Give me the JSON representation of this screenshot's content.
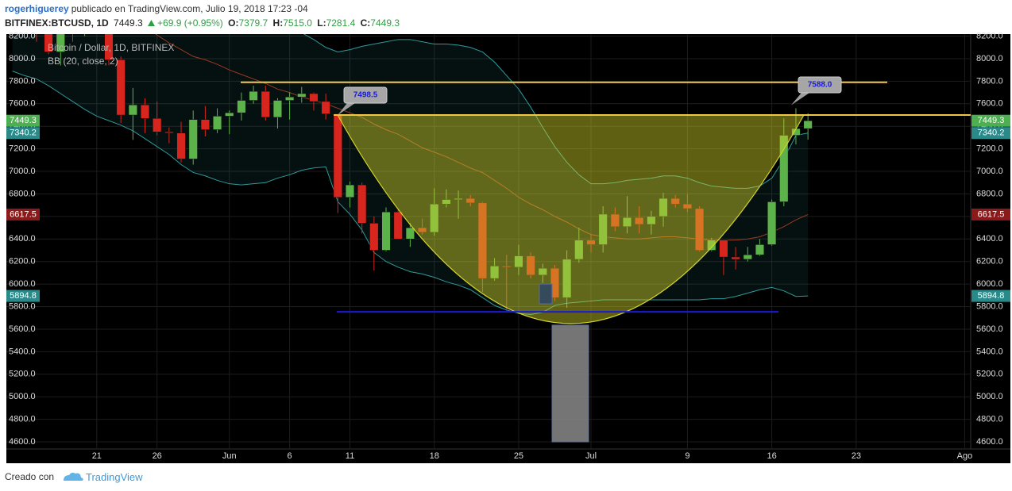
{
  "header": {
    "user": "rogerhiguerey",
    "published": "publicado en TradingView.com, Julio 19, 2018 17:23 -04",
    "symbol": "BITFINEX:BTCUSD, 1D",
    "last": "7449.3",
    "change": "+69.9 (+0.95%)",
    "o_label": "O:",
    "o": "7379.7",
    "h_label": "H:",
    "h": "7515.0",
    "l_label": "L:",
    "l": "7281.4",
    "c_label": "C:",
    "c": "7449.3"
  },
  "footer": {
    "text": "Creado con",
    "brand": "TradingView"
  },
  "chart_data": {
    "type": "candlestick",
    "title": "Bitcoin / Dollar, 1D, BITFINEX",
    "indicator": "BB (20, close, 2)",
    "categories": [
      null,
      null,
      null,
      null,
      null,
      null,
      null,
      "21",
      null,
      null,
      null,
      null,
      "26",
      null,
      null,
      null,
      null,
      null,
      "Jun",
      null,
      null,
      null,
      null,
      "6",
      null,
      null,
      null,
      null,
      "11",
      null,
      null,
      null,
      null,
      null,
      null,
      "18",
      null,
      null,
      null,
      null,
      null,
      null,
      "25",
      null,
      null,
      null,
      null,
      null,
      "Jul",
      null,
      null,
      null,
      null,
      null,
      null,
      null,
      "9",
      null,
      null,
      null,
      null,
      null,
      null,
      "16",
      null,
      null,
      null,
      null,
      null,
      null,
      "23",
      null,
      null,
      null,
      null,
      null,
      null,
      null,
      null,
      "Ago"
    ],
    "open": [
      8680,
      8670,
      8470,
      8340,
      8060,
      8240,
      8230,
      8520,
      8400,
      7990,
      7500,
      7590,
      7470,
      7350,
      7340,
      7110,
      7460,
      7370,
      7490,
      7520,
      7630,
      7710,
      7480,
      7630,
      7660,
      7690,
      7620,
      7510,
      6770,
      6880,
      6540,
      6300,
      6640,
      6400,
      6500,
      6460,
      6710,
      6750,
      6760,
      6720,
      6050,
      6160,
      6150,
      6250,
      6080,
      6140,
      5880,
      6220,
      6390,
      6350,
      6620,
      6510,
      6590,
      6530,
      6600,
      6760,
      6710,
      6670,
      6300,
      6390,
      6240,
      6220,
      6260,
      6350,
      6730,
      7320,
      7379.7,
      null,
      null,
      null,
      null,
      null,
      null,
      null,
      null,
      null,
      null,
      null,
      null,
      null
    ],
    "high": [
      8880,
      8830,
      8500,
      8470,
      8280,
      8380,
      8570,
      8550,
      8420,
      8020,
      7740,
      7650,
      7620,
      7390,
      7440,
      7540,
      7580,
      7560,
      7540,
      7700,
      7760,
      7760,
      7650,
      7700,
      7750,
      7700,
      7690,
      7510,
      6910,
      6900,
      6600,
      6680,
      6670,
      6540,
      6580,
      6850,
      6840,
      6830,
      6790,
      6730,
      6230,
      6260,
      6350,
      6280,
      6180,
      6170,
      6300,
      6500,
      6440,
      6690,
      6680,
      6780,
      6690,
      6650,
      6810,
      6790,
      6800,
      6690,
      6410,
      6390,
      6330,
      6330,
      6400,
      6750,
      7470,
      7560,
      7515,
      null,
      null,
      null,
      null,
      null,
      null,
      null,
      null,
      null,
      null,
      null,
      null,
      null
    ],
    "low": [
      8330,
      8440,
      8150,
      8040,
      7940,
      8150,
      8200,
      8360,
      7940,
      7430,
      7280,
      7340,
      7320,
      7250,
      7080,
      7060,
      7310,
      7340,
      7330,
      7450,
      7600,
      7450,
      7380,
      7460,
      7610,
      7540,
      7460,
      6630,
      6680,
      6450,
      6120,
      6290,
      6400,
      6330,
      6440,
      6430,
      6680,
      6580,
      6690,
      5930,
      6030,
      5760,
      6080,
      6050,
      6010,
      5850,
      5790,
      6190,
      6280,
      6280,
      6470,
      6450,
      6450,
      6440,
      6510,
      6680,
      6640,
      6290,
      6290,
      6080,
      6130,
      6200,
      6250,
      6340,
      6690,
      7240,
      7281.4,
      null,
      null,
      null,
      null,
      null,
      null,
      null,
      null,
      null,
      null,
      null,
      null,
      null
    ],
    "close": [
      8670,
      8470,
      8340,
      8060,
      8240,
      8230,
      8520,
      8400,
      7990,
      7500,
      7590,
      7470,
      7350,
      7340,
      7110,
      7460,
      7370,
      7490,
      7520,
      7630,
      7710,
      7480,
      7630,
      7660,
      7690,
      7620,
      7510,
      6770,
      6880,
      6540,
      6300,
      6640,
      6400,
      6500,
      6460,
      6710,
      6750,
      6760,
      6720,
      6050,
      6160,
      6150,
      6250,
      6080,
      6140,
      5880,
      6220,
      6390,
      6350,
      6620,
      6510,
      6590,
      6530,
      6600,
      6760,
      6710,
      6670,
      6300,
      6390,
      6240,
      6220,
      6260,
      6350,
      6730,
      7320,
      7379.7,
      7449.3,
      null,
      null,
      null,
      null,
      null,
      null,
      null,
      null,
      null,
      null,
      null,
      null,
      null
    ],
    "colors": {
      "up": "#5cb34a",
      "down": "#d8261f"
    },
    "bollinger": {
      "line_color": "#2f9a9a",
      "basis_color": "#9b3a22",
      "upper": [
        9950,
        9900,
        9850,
        9800,
        9700,
        9600,
        9500,
        9350,
        9200,
        9050,
        8950,
        8850,
        8750,
        8650,
        8560,
        8480,
        8430,
        8390,
        8360,
        8340,
        8330,
        8310,
        8290,
        8260,
        8230,
        8170,
        8100,
        8060,
        8080,
        8110,
        8130,
        8150,
        8170,
        8170,
        8150,
        8130,
        8130,
        8120,
        8100,
        8060,
        7970,
        7850,
        7730,
        7570,
        7390,
        7220,
        7080,
        6970,
        6890,
        6890,
        6900,
        6920,
        6930,
        6940,
        6960,
        6960,
        6940,
        6900,
        6870,
        6860,
        6850,
        6850,
        6870,
        6940,
        7110,
        7320,
        7340.2,
        null,
        null,
        null,
        null,
        null,
        null,
        null,
        null,
        null,
        null,
        null,
        null,
        null
      ],
      "basis": [
        8700,
        8680,
        8650,
        8620,
        8580,
        8540,
        8500,
        8460,
        8420,
        8380,
        8340,
        8290,
        8210,
        8140,
        8080,
        8020,
        7990,
        7950,
        7900,
        7860,
        7820,
        7780,
        7730,
        7700,
        7660,
        7630,
        7600,
        7560,
        7520,
        7480,
        7420,
        7370,
        7330,
        7270,
        7210,
        7170,
        7130,
        7080,
        7030,
        6990,
        6920,
        6850,
        6770,
        6710,
        6660,
        6600,
        6550,
        6490,
        6440,
        6420,
        6410,
        6400,
        6400,
        6410,
        6420,
        6420,
        6410,
        6400,
        6390,
        6390,
        6390,
        6400,
        6420,
        6460,
        6510,
        6570,
        6617.5,
        null,
        null,
        null,
        null,
        null,
        null,
        null,
        null,
        null,
        null,
        null,
        null,
        null
      ],
      "lower": [
        7890,
        7850,
        7820,
        7760,
        7690,
        7620,
        7550,
        7490,
        7450,
        7410,
        7360,
        7290,
        7220,
        7150,
        7060,
        6990,
        6960,
        6920,
        6890,
        6880,
        6890,
        6900,
        6940,
        6970,
        7010,
        7030,
        7040,
        6730,
        6620,
        6480,
        6280,
        6200,
        6150,
        6110,
        6090,
        6060,
        6020,
        5990,
        5950,
        5880,
        5810,
        5770,
        5740,
        5730,
        5750,
        5810,
        5830,
        5840,
        5850,
        5860,
        5860,
        5860,
        5860,
        5860,
        5860,
        5860,
        5860,
        5860,
        5870,
        5870,
        5890,
        5920,
        5950,
        5970,
        5940,
        5890,
        5894.8,
        null,
        null,
        null,
        null,
        null,
        null,
        null,
        null,
        null,
        null,
        null,
        null,
        null
      ]
    },
    "ylim": [
      4537,
      8218
    ],
    "yticks": [
      {
        "value": 4600,
        "label": "4600.0"
      },
      {
        "value": 4800,
        "label": "4800.0"
      },
      {
        "value": 5000,
        "label": "5000.0"
      },
      {
        "value": 5200,
        "label": "5200.0"
      },
      {
        "value": 5400,
        "label": "5400.0"
      },
      {
        "value": 5600,
        "label": "5600.0"
      },
      {
        "value": 5800,
        "label": "5800.0"
      },
      {
        "value": 6000,
        "label": "6000.0"
      },
      {
        "value": 6200,
        "label": "6200.0"
      },
      {
        "value": 6400,
        "label": "6400.0"
      },
      {
        "value": 6600,
        "label": "6600.0"
      },
      {
        "value": 6800,
        "label": "6800.0"
      },
      {
        "value": 7000,
        "label": "7000.0"
      },
      {
        "value": 7200,
        "label": "7200.0"
      },
      {
        "value": 7400,
        "label": "7400.0"
      },
      {
        "value": 7600,
        "label": "7600.0"
      },
      {
        "value": 7800,
        "label": "7800.0"
      },
      {
        "value": 8000,
        "label": "8000.0"
      },
      {
        "value": 8200,
        "label": "8200.0"
      }
    ],
    "grid": true,
    "price_tags": [
      {
        "value": 7449.3,
        "color": "#4caf50"
      },
      {
        "value": 7340.2,
        "color": "#2a8a8a"
      },
      {
        "value": 6617.5,
        "color": "#8b1a1a"
      },
      {
        "value": 5894.8,
        "color": "#2a8a8a"
      }
    ],
    "hlines": [
      {
        "value": 7790,
        "color": "#f2c744"
      },
      {
        "value": 7500,
        "color": "#f2c744"
      },
      {
        "value": 5754,
        "color": "#1a1adb"
      }
    ],
    "cup": {
      "top": 7500,
      "bottom": 5650,
      "color": "#d4d42a"
    },
    "boxes": [
      {
        "low": 4600,
        "high": 5636,
        "color": "#8a8a8a"
      },
      {
        "low": 5825,
        "high": 6000,
        "color": "#2e4566"
      }
    ],
    "callouts": {
      "values": [
        7498.5,
        7588
      ],
      "value_labels": [
        "7498.5",
        "7588.0"
      ]
    }
  }
}
